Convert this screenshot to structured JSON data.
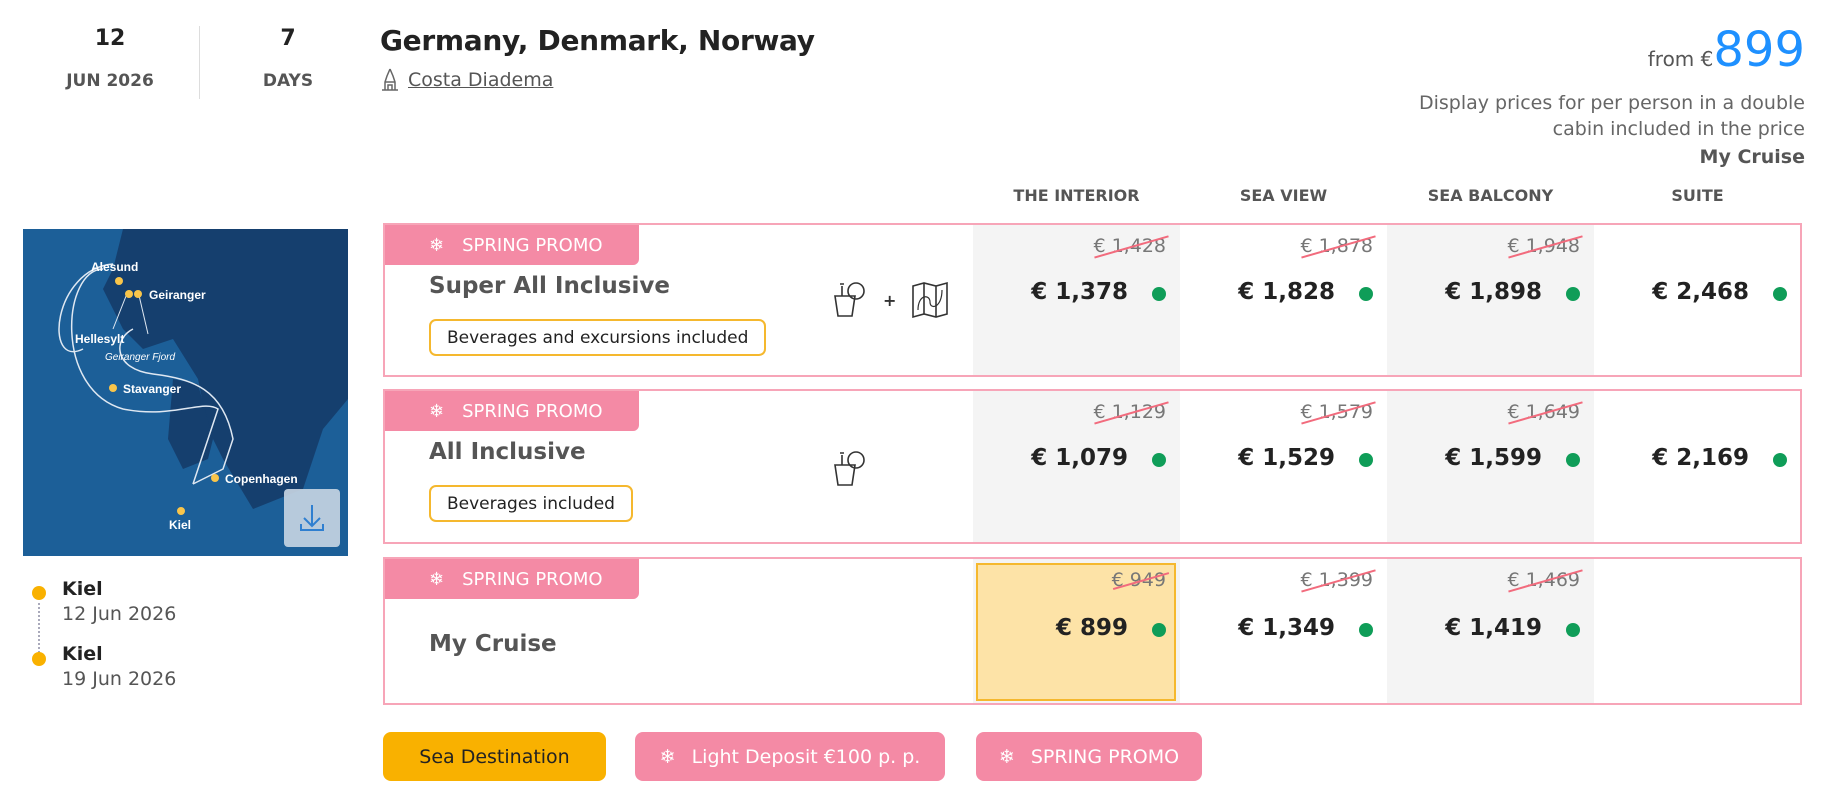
{
  "header": {
    "date_day": "12",
    "date_month": "JUN 2026",
    "duration": "7",
    "duration_unit": "DAYS",
    "title": "Germany, Denmark, Norway",
    "ship": "Costa Diadema",
    "ship_icon": "ship-icon",
    "from_label": "from €",
    "from_price": "899",
    "disclaimer": "Display prices for per person in a double cabin included in the price",
    "selected_package": "My Cruise"
  },
  "columns": [
    "THE INTERIOR",
    "SEA VIEW",
    "SEA BALCONY",
    "SUITE"
  ],
  "rows": [
    {
      "promo": "SPRING PROMO",
      "name": "Super All Inclusive",
      "badge": "Beverages and excursions included",
      "icons": [
        "beverage-icon",
        "plus",
        "excursion-map-icon"
      ],
      "prices": [
        {
          "old": "€ 1,428",
          "new": "€ 1,378"
        },
        {
          "old": "€ 1,878",
          "new": "€ 1,828"
        },
        {
          "old": "€ 1,948",
          "new": "€ 1,898"
        },
        {
          "old": "",
          "new": "€ 2,468"
        }
      ]
    },
    {
      "promo": "SPRING PROMO",
      "name": "All Inclusive",
      "badge": "Beverages included",
      "icons": [
        "beverage-icon"
      ],
      "prices": [
        {
          "old": "€ 1,129",
          "new": "€ 1,079"
        },
        {
          "old": "€ 1,579",
          "new": "€ 1,529"
        },
        {
          "old": "€ 1,649",
          "new": "€ 1,599"
        },
        {
          "old": "",
          "new": "€ 2,169"
        }
      ]
    },
    {
      "promo": "SPRING PROMO",
      "name": "My Cruise",
      "badge": "",
      "icons": [],
      "selected_column": 0,
      "prices": [
        {
          "old": "€ 949",
          "new": "€ 899"
        },
        {
          "old": "€ 1,399",
          "new": "€ 1,349"
        },
        {
          "old": "€ 1,469",
          "new": "€ 1,419"
        },
        null
      ]
    }
  ],
  "map": {
    "labels": [
      "Alesund",
      "Geiranger",
      "Hellesylt",
      "Geiranger Fjord",
      "Stavanger",
      "Copenhagen",
      "Kiel"
    ],
    "download_icon": "download-icon"
  },
  "itinerary": [
    {
      "port": "Kiel",
      "date": "12 Jun 2026"
    },
    {
      "port": "Kiel",
      "date": "19 Jun 2026"
    }
  ],
  "tags": [
    {
      "label": "Sea Destination",
      "color": "#f9b100"
    },
    {
      "label": "Light Deposit €100 p. p.",
      "color": "#f48aa5",
      "icon": "snowflake-icon"
    },
    {
      "label": "SPRING PROMO",
      "color": "#f48aa5",
      "icon": "snowflake-icon"
    }
  ],
  "colors": {
    "accent": "#1e90ff",
    "promo": "#f48aa5",
    "available": "#0f9d58",
    "highlight": "#fde3a7"
  }
}
